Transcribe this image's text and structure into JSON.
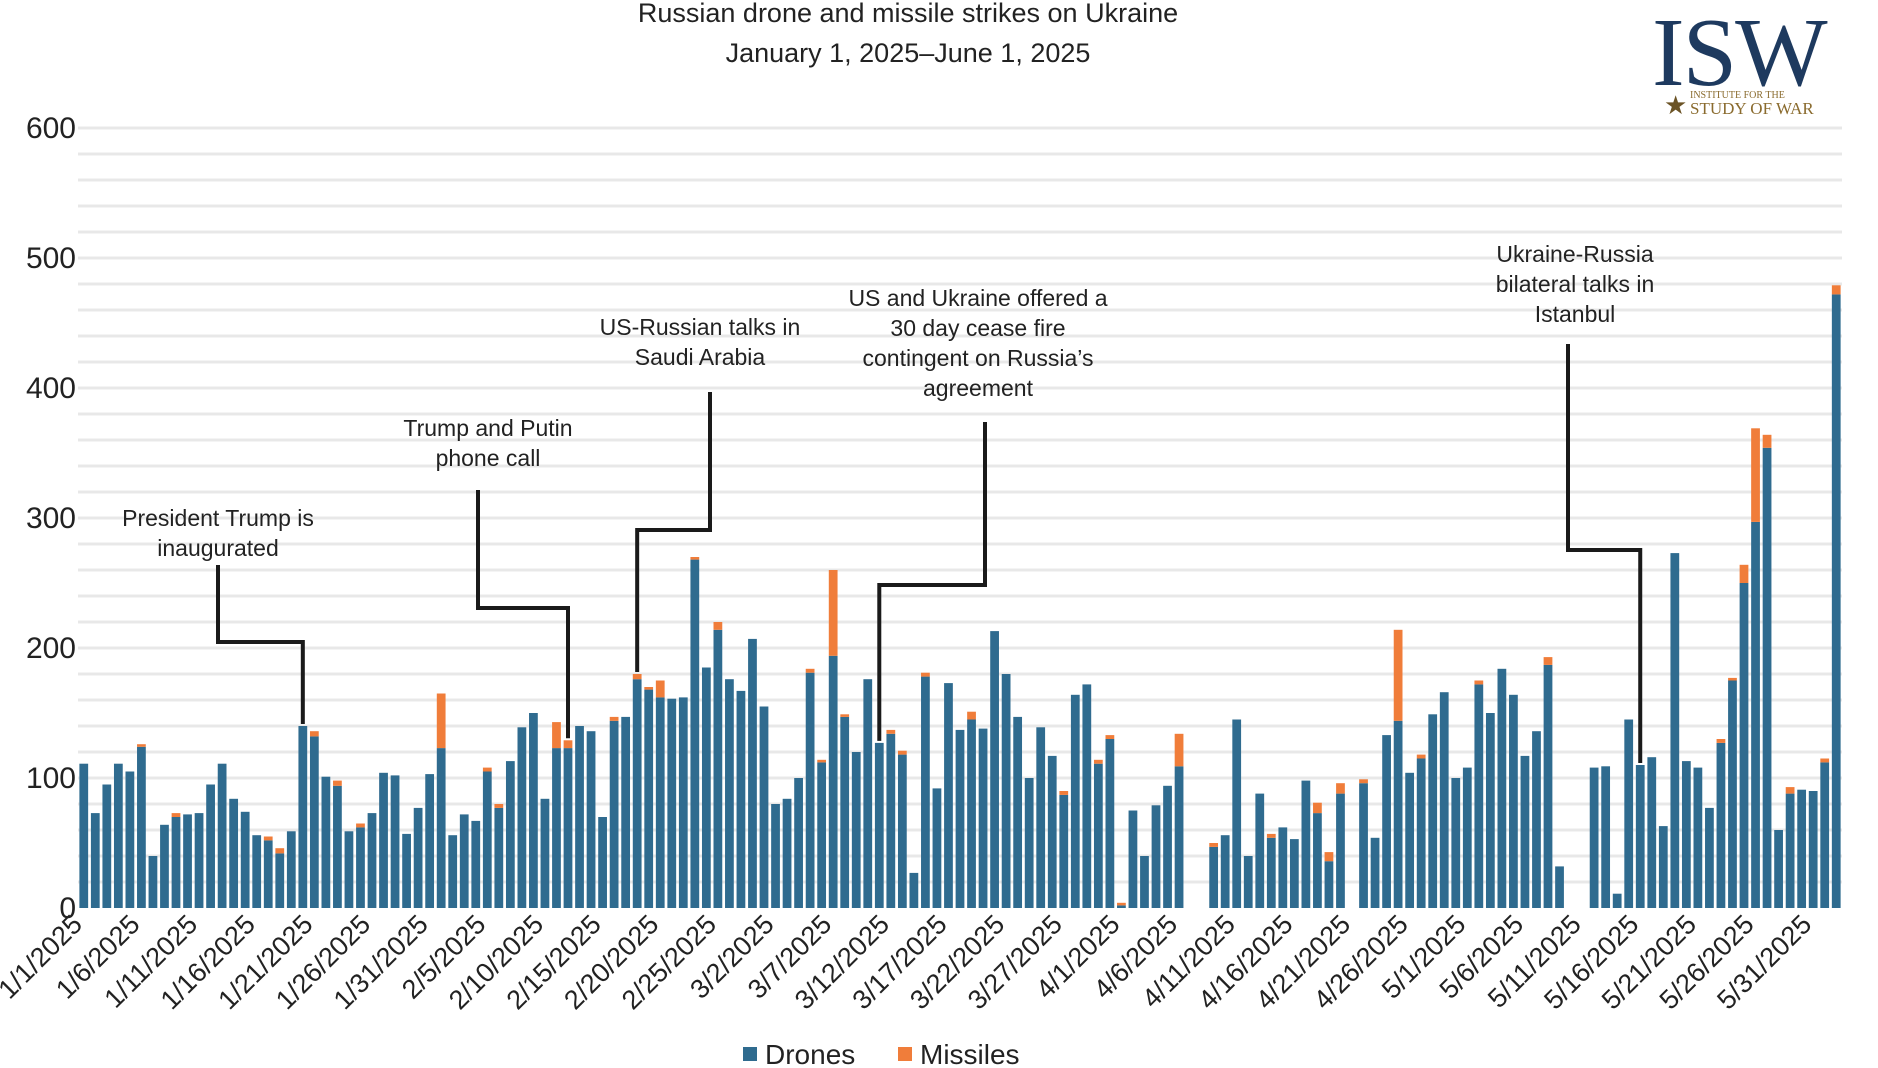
{
  "chart_data": {
    "type": "bar",
    "stacked": true,
    "title": "Russian drone and missile strikes on Ukraine",
    "subtitle": "January 1, 2025–June 1, 2025",
    "ylim": [
      0,
      600
    ],
    "yticks": [
      "0",
      "100",
      "200",
      "300",
      "400",
      "500",
      "600"
    ],
    "grid": true,
    "legend_position": "bottom",
    "xtick_labels": [
      "1/1/2025",
      "1/6/2025",
      "1/11/2025",
      "1/16/2025",
      "1/21/2025",
      "1/26/2025",
      "1/31/2025",
      "2/5/2025",
      "2/10/2025",
      "2/15/2025",
      "2/20/2025",
      "2/25/2025",
      "3/2/2025",
      "3/7/2025",
      "3/12/2025",
      "3/17/2025",
      "3/22/2025",
      "3/27/2025",
      "4/1/2025",
      "4/6/2025",
      "4/11/2025",
      "4/16/2025",
      "4/21/2025",
      "4/26/2025",
      "5/1/2025",
      "5/6/2025",
      "5/11/2025",
      "5/16/2025",
      "5/21/2025",
      "5/26/2025",
      "5/31/2025"
    ],
    "series": [
      {
        "name": "Drones",
        "color": "#2f6b8f",
        "values": [
          111,
          73,
          95,
          111,
          105,
          124,
          40,
          64,
          70,
          72,
          73,
          95,
          111,
          84,
          74,
          56,
          52,
          42,
          59,
          140,
          132,
          101,
          94,
          59,
          62,
          73,
          104,
          102,
          57,
          77,
          103,
          123,
          56,
          72,
          67,
          105,
          77,
          113,
          139,
          150,
          84,
          123,
          123,
          140,
          136,
          70,
          144,
          147,
          176,
          168,
          162,
          161,
          162,
          268,
          185,
          214,
          176,
          167,
          207,
          155,
          80,
          84,
          100,
          181,
          112,
          194,
          147,
          120,
          176,
          127,
          134,
          118,
          27,
          178,
          92,
          173,
          137,
          145,
          138,
          213,
          180,
          147,
          100,
          139,
          117,
          87,
          164,
          172,
          111,
          130,
          2,
          75,
          40,
          79,
          94,
          109,
          0,
          0,
          47,
          56,
          145,
          40,
          88,
          54,
          62,
          53,
          98,
          73,
          36,
          88,
          0,
          96,
          54,
          133,
          144,
          104,
          115,
          149,
          166,
          100,
          108,
          172,
          150,
          184,
          164,
          117,
          136,
          187,
          32,
          0,
          0,
          108,
          109,
          11,
          145,
          110,
          116,
          63,
          273,
          113,
          108,
          77,
          127,
          175,
          250,
          297,
          354,
          60,
          88,
          91,
          90,
          112,
          472
        ]
      },
      {
        "name": "Missiles",
        "color": "#f07d3a",
        "values": [
          0,
          0,
          0,
          0,
          0,
          2,
          0,
          0,
          3,
          0,
          0,
          0,
          0,
          0,
          0,
          0,
          3,
          4,
          0,
          0,
          4,
          0,
          4,
          0,
          3,
          0,
          0,
          0,
          0,
          0,
          0,
          42,
          0,
          0,
          0,
          3,
          3,
          0,
          0,
          0,
          0,
          20,
          6,
          0,
          0,
          0,
          3,
          0,
          4,
          2,
          13,
          0,
          0,
          2,
          0,
          6,
          0,
          0,
          0,
          0,
          0,
          0,
          0,
          3,
          2,
          66,
          2,
          0,
          0,
          0,
          3,
          3,
          0,
          3,
          0,
          0,
          0,
          6,
          0,
          0,
          0,
          0,
          0,
          0,
          0,
          3,
          0,
          0,
          3,
          3,
          2,
          0,
          0,
          0,
          0,
          25,
          0,
          0,
          3,
          0,
          0,
          0,
          0,
          3,
          0,
          0,
          0,
          8,
          7,
          8,
          0,
          3,
          0,
          0,
          70,
          0,
          3,
          0,
          0,
          0,
          0,
          3,
          0,
          0,
          0,
          0,
          0,
          6,
          0,
          0,
          0,
          0,
          0,
          0,
          0,
          0,
          0,
          0,
          0,
          0,
          0,
          0,
          3,
          2,
          14,
          72,
          10,
          0,
          5,
          0,
          0,
          3,
          7
        ]
      }
    ],
    "annotations": [
      {
        "text": "President Trump is\ninaugurated",
        "date": "1/20/2025"
      },
      {
        "text": "Trump and Putin\nphone call",
        "date": "2/12/2025"
      },
      {
        "text": "US-Russian talks in\nSaudi Arabia",
        "date": "2/18/2025"
      },
      {
        "text": "US and Ukraine offered a\n30 day cease fire\ncontingent on Russia’s\nagreement",
        "date": "3/11/2025"
      },
      {
        "text": "Ukraine-Russia\nbilateral talks in\nIstanbul",
        "date": "5/16/2025"
      }
    ]
  },
  "logo": {
    "text": "ISW",
    "subtitle_top": "INSTITUTE FOR THE",
    "subtitle_bottom": "STUDY OF WAR"
  }
}
